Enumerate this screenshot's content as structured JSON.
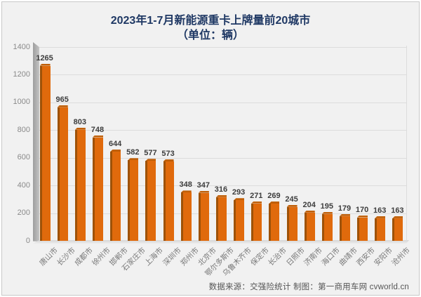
{
  "title": {
    "line1": "2023年1-7月新能源重卡上牌量前20城市",
    "line2": "（单位：辆）"
  },
  "footer": {
    "source_text": "数据来源：交强险统计  制图：第一商用车网 cvworld.cn"
  },
  "colors": {
    "bar_face": "#e06a0c",
    "bar_side": "#9e5208",
    "bar_cap": "#c05f08",
    "title_navy": "#1f3864",
    "background": "#f1f1f1",
    "gridline": "#dcdcdc",
    "axis_text": "#8a8a8a",
    "value_text": "#3d3d3d"
  },
  "chart_data": {
    "type": "bar",
    "title": "2023年1-7月新能源重卡上牌量前20城市",
    "subtitle": "（单位：辆）",
    "xlabel": "",
    "ylabel": "",
    "ylim": [
      0,
      1400
    ],
    "ytick_step": 200,
    "grid": true,
    "legend_position": "none",
    "style": "3d-column",
    "categories": [
      "唐山市",
      "长沙市",
      "成都市",
      "徐州市",
      "邯郸市",
      "石家庄市",
      "上海市",
      "深圳市",
      "郑州市",
      "北京市",
      "鄂尔多斯市",
      "乌鲁木齐市",
      "保定市",
      "长治市",
      "日照市",
      "济南市",
      "海口市",
      "曲靖市",
      "西安市",
      "安阳市",
      "沧州市"
    ],
    "values": [
      1265,
      965,
      803,
      748,
      644,
      582,
      577,
      573,
      348,
      347,
      316,
      293,
      271,
      269,
      245,
      204,
      195,
      179,
      170,
      163,
      163
    ]
  }
}
